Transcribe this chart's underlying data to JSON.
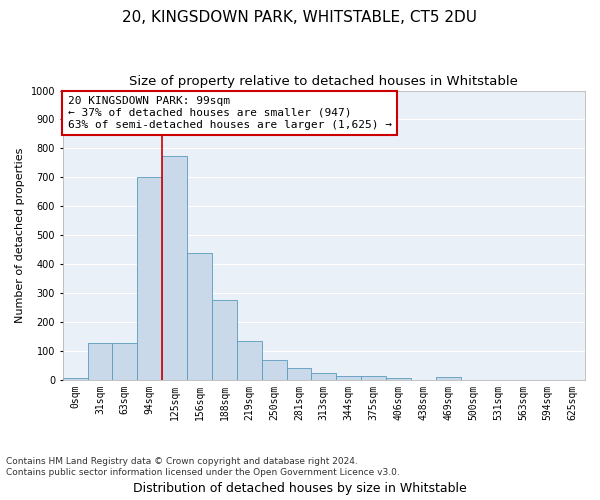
{
  "title": "20, KINGSDOWN PARK, WHITSTABLE, CT5 2DU",
  "subtitle": "Size of property relative to detached houses in Whitstable",
  "xlabel": "Distribution of detached houses by size in Whitstable",
  "ylabel": "Number of detached properties",
  "bar_color": "#c9d9ea",
  "bar_edge_color": "#5a9abe",
  "background_color": "#eaf0f8",
  "grid_color": "#ffffff",
  "categories": [
    "0sqm",
    "31sqm",
    "63sqm",
    "94sqm",
    "125sqm",
    "156sqm",
    "188sqm",
    "219sqm",
    "250sqm",
    "281sqm",
    "313sqm",
    "344sqm",
    "375sqm",
    "406sqm",
    "438sqm",
    "469sqm",
    "500sqm",
    "531sqm",
    "563sqm",
    "594sqm",
    "625sqm"
  ],
  "values": [
    8,
    128,
    128,
    700,
    775,
    440,
    275,
    133,
    68,
    40,
    25,
    13,
    13,
    8,
    0,
    10,
    0,
    0,
    0,
    0,
    0
  ],
  "ylim": [
    0,
    1000
  ],
  "yticks": [
    0,
    100,
    200,
    300,
    400,
    500,
    600,
    700,
    800,
    900,
    1000
  ],
  "property_line_color": "#cc0000",
  "property_bin_index": 3,
  "annotation_text": "20 KINGSDOWN PARK: 99sqm\n← 37% of detached houses are smaller (947)\n63% of semi-detached houses are larger (1,625) →",
  "annotation_box_color": "#ffffff",
  "annotation_box_edge": "#cc0000",
  "footer_line1": "Contains HM Land Registry data © Crown copyright and database right 2024.",
  "footer_line2": "Contains public sector information licensed under the Open Government Licence v3.0.",
  "title_fontsize": 11,
  "subtitle_fontsize": 9.5,
  "xlabel_fontsize": 9,
  "ylabel_fontsize": 8,
  "tick_fontsize": 7,
  "annotation_fontsize": 8,
  "footer_fontsize": 6.5
}
